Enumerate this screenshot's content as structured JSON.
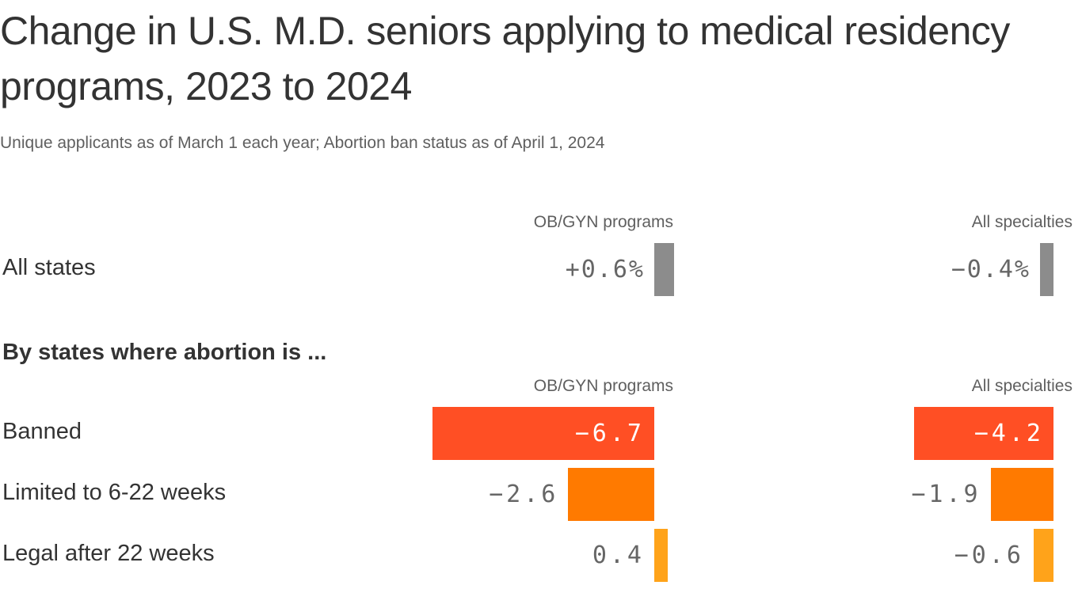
{
  "title": "Change in U.S. M.D. seniors applying to medical residency programs, 2023 to 2024",
  "subtitle": "Unique applicants as of March 1 each year; Abortion ban status as of April 1, 2024",
  "section_label": "By states where abortion is ...",
  "column_headers": [
    "OB/GYN programs",
    "All specialties"
  ],
  "colors": {
    "all_states": "#8c8c8c",
    "banned": "#ff4f24",
    "limited": "#ff7a00",
    "legal": "#ffa31a",
    "text": "#333333",
    "muted": "#5f5f5f"
  },
  "chart_data": {
    "type": "bar",
    "orientation": "horizontal",
    "title": "Change in U.S. M.D. seniors applying to medical residency programs, 2023 to 2024",
    "subtitle": "Unique applicants as of March 1 each year; Abortion ban status as of April 1, 2024",
    "units": "percent change",
    "series": [
      {
        "name": "OB/GYN programs",
        "values": [
          0.6,
          -6.7,
          -2.6,
          0.4
        ]
      },
      {
        "name": "All specialties",
        "values": [
          -0.4,
          -4.2,
          -1.9,
          -0.6
        ]
      }
    ],
    "categories": [
      "All states",
      "Banned",
      "Limited to 6-22 weeks",
      "Legal after 22 weeks"
    ],
    "labels": {
      "OB/GYN programs": [
        "+0.6%",
        "−6.7",
        "−2.6",
        "0.4"
      ],
      "All specialties": [
        "−0.4%",
        "−4.2",
        "−1.9",
        "−0.6"
      ]
    },
    "legend": "none"
  }
}
